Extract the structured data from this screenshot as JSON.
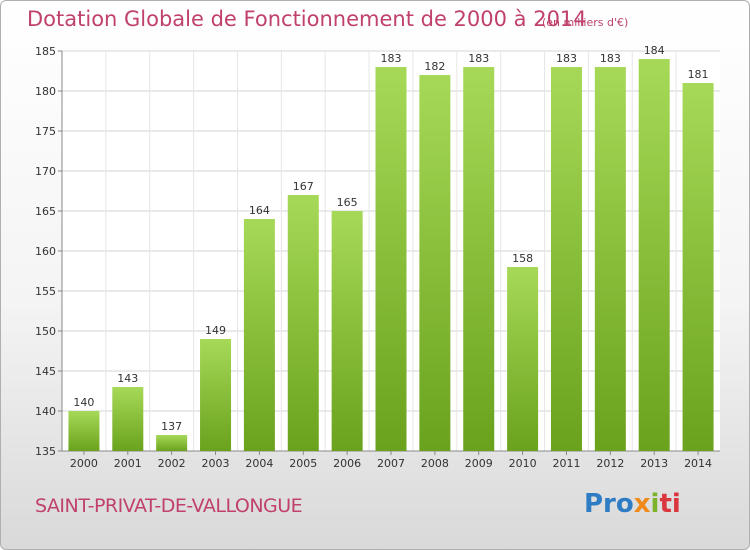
{
  "title": "Dotation Globale de Fonctionnement de 2000 à 2014",
  "subtitle": "(en milliers d'€)",
  "commune": "SAINT-PRIVAT-DE-VALLONGUE",
  "logo": {
    "part1": "Pro",
    "part2": "x",
    "part3": "i",
    "part4": "ti"
  },
  "colors": {
    "title": "#c0406e",
    "bar_light": "#a6d957",
    "bar_dark": "#6aa21d",
    "grid": "#d6d6d6"
  },
  "chart_data": {
    "type": "bar",
    "title": "Dotation Globale de Fonctionnement de 2000 à 2014",
    "subtitle": "(en milliers d'€)",
    "xlabel": "",
    "ylabel": "",
    "categories": [
      "2000",
      "2001",
      "2002",
      "2003",
      "2004",
      "2005",
      "2006",
      "2007",
      "2008",
      "2009",
      "2010",
      "2011",
      "2012",
      "2013",
      "2014"
    ],
    "values": [
      140,
      143,
      137,
      149,
      164,
      167,
      165,
      183,
      182,
      183,
      158,
      183,
      183,
      184,
      181
    ],
    "ylim": [
      135,
      185
    ],
    "yticks": [
      135,
      140,
      145,
      150,
      155,
      160,
      165,
      170,
      175,
      180,
      185
    ],
    "grid": true
  }
}
